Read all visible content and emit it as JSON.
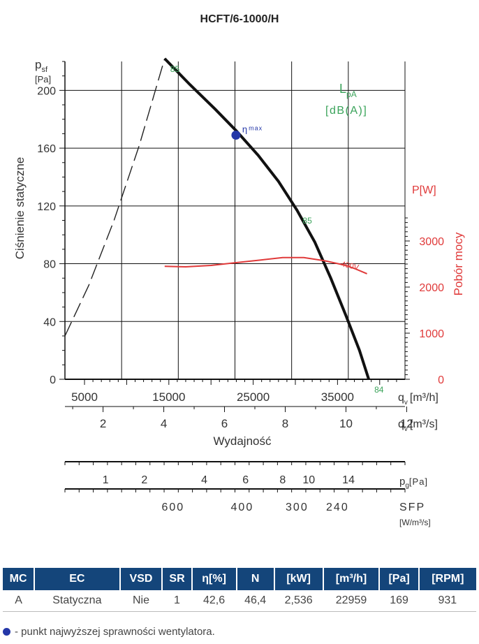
{
  "title": "HCFT/6-1000/H",
  "chart_data": {
    "type": "line",
    "title": "HCFT/6-1000/H",
    "ylabel": "Ciśnienie statyczne",
    "y_unit_symbol": "p",
    "y_unit_sub": "sf",
    "y_unit": "[Pa]",
    "ylim": [
      0,
      220
    ],
    "yticks": [
      0,
      40,
      80,
      120,
      160,
      200
    ],
    "y2label": "Pobór mocy",
    "y2_unit": "P[W]",
    "y2lim": [
      0,
      3500
    ],
    "y2ticks": [
      0,
      1000,
      2000,
      3000
    ],
    "xlabel": "Wydajność",
    "xlim_m3h": [
      2680,
      43000
    ],
    "xticks_m3h": [
      5000,
      15000,
      25000,
      35000
    ],
    "x_unit_m3h_prefix": "q",
    "x_unit_m3h": "[m³/h]",
    "xticks_m3s": [
      2,
      4,
      6,
      8,
      10,
      12
    ],
    "x_unit_m3s_prefix": "q",
    "x_unit_m3s": "[m³/s]",
    "lpa_title": "L",
    "lpa_sub": "pA",
    "lpa_unit": "[dB(A)]",
    "pressure_curve": {
      "name": "Pressure (solid)",
      "x": [
        14500,
        17500,
        20500,
        23000,
        25600,
        28000,
        30200,
        32300,
        34200,
        36000,
        37600,
        38700
      ],
      "y": [
        222,
        204,
        187,
        172,
        155,
        137,
        117,
        95,
        70,
        44,
        20,
        0
      ]
    },
    "pressure_curve_dashed": {
      "name": "Pressure unstable (dashed)",
      "x": [
        2680,
        5500,
        8500,
        11500,
        13200,
        14500
      ],
      "y": [
        30,
        65,
        110,
        162,
        196,
        222
      ]
    },
    "power_curve": {
      "name": "400V",
      "x": [
        14500,
        17000,
        20000,
        23000,
        26000,
        28500,
        31000,
        33500,
        36000,
        37200,
        38500
      ],
      "y": [
        2450,
        2440,
        2470,
        2530,
        2590,
        2640,
        2640,
        2570,
        2470,
        2390,
        2290
      ]
    },
    "power_curve_label": "400V",
    "noise_labels": [
      {
        "text": "85",
        "x": 14500,
        "y": 222
      },
      {
        "text": "85",
        "x": 30200,
        "y": 117
      },
      {
        "text": "84",
        "x": 38700,
        "y": 0
      }
    ],
    "eta_max": {
      "x": 22959,
      "y": 169,
      "label": "η",
      "label_sub": "max"
    },
    "pg_scale": {
      "unit_prefix": "p",
      "unit_sub": "g",
      "unit": "[Pa]",
      "labels": [
        {
          "text": "1",
          "x": 7500
        },
        {
          "text": "2",
          "x": 12100
        },
        {
          "text": "4",
          "x": 19200
        },
        {
          "text": "6",
          "x": 24100
        },
        {
          "text": "8",
          "x": 28500
        },
        {
          "text": "10",
          "x": 31600
        },
        {
          "text": "14",
          "x": 36300
        }
      ]
    },
    "sfp_scale": {
      "unit": "SFP",
      "unit2": "[W/m³/s]",
      "labels": [
        {
          "text": "600",
          "x": 15500
        },
        {
          "text": "400",
          "x": 23700
        },
        {
          "text": "300",
          "x": 30200
        },
        {
          "text": "240",
          "x": 35000
        }
      ]
    }
  },
  "table": {
    "headers": [
      "MC",
      "EC",
      "VSD",
      "SR",
      "η[%]",
      "N",
      "[kW]",
      "[m³/h]",
      "[Pa]",
      "[RPM]"
    ],
    "row": [
      "A",
      "Statyczna",
      "Nie",
      "1",
      "42,6",
      "46,4",
      "2,536",
      "22959",
      "169",
      "931"
    ]
  },
  "footnote": "- punkt najwyższej sprawności wentylatora.",
  "colors": {
    "text": "#3a3a3a",
    "pressure": "#111111",
    "power": "#e03a3a",
    "green": "#3aa35a",
    "eta": "#2437a8",
    "header_bg": "#14457a"
  }
}
